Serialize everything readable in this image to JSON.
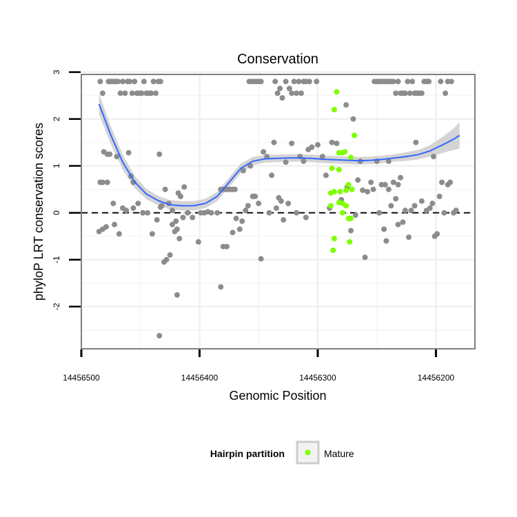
{
  "chart_data": {
    "type": "scatter",
    "title": "Conservation",
    "xlabel": "Genomic Position",
    "ylabel": "phyloP LRT conservation scores",
    "x_reversed": true,
    "xlim": [
      14456500,
      14456167
    ],
    "ylim": [
      -2.9,
      2.95
    ],
    "x_ticks": [
      14456500,
      14456400,
      14456300,
      14456200
    ],
    "x_tick_labels": [
      "14456500",
      "14456400",
      "14456300",
      "14456200"
    ],
    "y_ticks": [
      -2,
      -1,
      0,
      1,
      2,
      3
    ],
    "y_tick_labels": [
      "-2",
      "-1",
      "0",
      "1",
      "2",
      "3"
    ],
    "grid": true,
    "reference_line": {
      "y": 0,
      "style": "dashed"
    },
    "legend": {
      "title": "Hairpin partition",
      "position": "bottom",
      "entries": [
        {
          "label": "Mature",
          "color": "#7fff00"
        }
      ]
    },
    "colors": {
      "other": "#8c8c8c",
      "mature": "#7fff00",
      "smooth": "#3366ff",
      "band": "#cccccc"
    },
    "series": [
      {
        "name": "",
        "color": "#8c8c8c",
        "points": [
          [
            14456484,
            2.8
          ],
          [
            14456482,
            2.55
          ],
          [
            14456477,
            2.8
          ],
          [
            14456475,
            2.8
          ],
          [
            14456473,
            2.8
          ],
          [
            14456471,
            2.8
          ],
          [
            14456469,
            2.8
          ],
          [
            14456467,
            2.55
          ],
          [
            14456465,
            2.8
          ],
          [
            14456463,
            2.55
          ],
          [
            14456461,
            2.8
          ],
          [
            14456459,
            2.8
          ],
          [
            14456457,
            2.55
          ],
          [
            14456455,
            2.8
          ],
          [
            14456453,
            2.55
          ],
          [
            14456451,
            2.55
          ],
          [
            14456449,
            2.55
          ],
          [
            14456447,
            2.8
          ],
          [
            14456445,
            2.55
          ],
          [
            14456443,
            2.55
          ],
          [
            14456441,
            2.55
          ],
          [
            14456439,
            2.8
          ],
          [
            14456437,
            2.55
          ],
          [
            14456435,
            2.8
          ],
          [
            14456433,
            2.8
          ],
          [
            14456485,
            -0.4
          ],
          [
            14456482,
            -0.35
          ],
          [
            14456479,
            -0.3
          ],
          [
            14456472,
            -0.25
          ],
          [
            14456468,
            -0.45
          ],
          [
            14456462,
            0.05
          ],
          [
            14456456,
            0.1
          ],
          [
            14456452,
            0.2
          ],
          [
            14456448,
            0.0
          ],
          [
            14456440,
            -0.45
          ],
          [
            14456436,
            -0.15
          ],
          [
            14456432,
            0.15
          ],
          [
            14456430,
            -1.05
          ],
          [
            14456428,
            -1.0
          ],
          [
            14456425,
            -0.9
          ],
          [
            14456423,
            -0.25
          ],
          [
            14456421,
            -0.4
          ],
          [
            14456419,
            -0.35
          ],
          [
            14456417,
            -0.55
          ],
          [
            14456414,
            -0.1
          ],
          [
            14456410,
            0.0
          ],
          [
            14456406,
            -0.1
          ],
          [
            14456401,
            -0.62
          ],
          [
            14456399,
            0.0
          ],
          [
            14456396,
            0.0
          ],
          [
            14456393,
            0.02
          ],
          [
            14456390,
            0.0
          ],
          [
            14456385,
            0.0
          ],
          [
            14456484,
            0.65
          ],
          [
            14456482,
            0.65
          ],
          [
            14456478,
            0.65
          ],
          [
            14456481,
            1.3
          ],
          [
            14456478,
            1.25
          ],
          [
            14456476,
            1.25
          ],
          [
            14456473,
            0.2
          ],
          [
            14456470,
            1.2
          ],
          [
            14456465,
            0.1
          ],
          [
            14456460,
            1.28
          ],
          [
            14456458,
            0.78
          ],
          [
            14456456,
            0.65
          ],
          [
            14456448,
            0.0
          ],
          [
            14456444,
            0.0
          ],
          [
            14456434,
            1.25
          ],
          [
            14456433,
            0.12
          ],
          [
            14456429,
            0.5
          ],
          [
            14456426,
            0.2
          ],
          [
            14456423,
            0.05
          ],
          [
            14456420,
            -0.18
          ],
          [
            14456418,
            0.42
          ],
          [
            14456416,
            0.35
          ],
          [
            14456413,
            0.55
          ],
          [
            14456434,
            -2.62
          ],
          [
            14456419,
            -1.75
          ],
          [
            14456382,
            -1.58
          ],
          [
            14456382,
            0.5
          ],
          [
            14456380,
            0.5
          ],
          [
            14456378,
            0.5
          ],
          [
            14456376,
            0.5
          ],
          [
            14456374,
            0.5
          ],
          [
            14456372,
            0.5
          ],
          [
            14456370,
            0.5
          ],
          [
            14456380,
            -0.72
          ],
          [
            14456377,
            -0.72
          ],
          [
            14456372,
            -0.42
          ],
          [
            14456369,
            -0.12
          ],
          [
            14456366,
            -0.35
          ],
          [
            14456364,
            -0.18
          ],
          [
            14456363,
            0.9
          ],
          [
            14456361,
            0.05
          ],
          [
            14456359,
            0.15
          ],
          [
            14456357,
            1.0
          ],
          [
            14456355,
            0.35
          ],
          [
            14456353,
            0.35
          ],
          [
            14456350,
            0.2
          ],
          [
            14456348,
            -0.98
          ],
          [
            14456346,
            1.3
          ],
          [
            14456343,
            1.2
          ],
          [
            14456341,
            0.0
          ],
          [
            14456339,
            0.8
          ],
          [
            14456337,
            1.5
          ],
          [
            14456335,
            0.1
          ],
          [
            14456333,
            0.32
          ],
          [
            14456331,
            0.25
          ],
          [
            14456329,
            -0.15
          ],
          [
            14456327,
            1.08
          ],
          [
            14456325,
            0.2
          ],
          [
            14456322,
            1.48
          ],
          [
            14456318,
            0.0
          ],
          [
            14456315,
            1.2
          ],
          [
            14456312,
            1.1
          ],
          [
            14456310,
            -0.1
          ],
          [
            14456308,
            1.35
          ],
          [
            14456305,
            1.4
          ],
          [
            14456300,
            1.45
          ],
          [
            14456296,
            1.2
          ],
          [
            14456293,
            0.8
          ],
          [
            14456290,
            0.1
          ],
          [
            14456288,
            1.5
          ],
          [
            14456284,
            1.48
          ],
          [
            14456280,
            0.28
          ],
          [
            14456275,
            0.55
          ],
          [
            14456272,
            -0.38
          ],
          [
            14456268,
            -0.05
          ],
          [
            14456266,
            0.7
          ],
          [
            14456264,
            1.1
          ],
          [
            14456262,
            0.48
          ],
          [
            14456358,
            2.8
          ],
          [
            14456356,
            2.8
          ],
          [
            14456354,
            2.8
          ],
          [
            14456352,
            2.8
          ],
          [
            14456350,
            2.8
          ],
          [
            14456348,
            2.8
          ],
          [
            14456336,
            2.8
          ],
          [
            14456334,
            2.55
          ],
          [
            14456332,
            2.65
          ],
          [
            14456330,
            2.45
          ],
          [
            14456327,
            2.8
          ],
          [
            14456324,
            2.65
          ],
          [
            14456322,
            2.55
          ],
          [
            14456320,
            2.8
          ],
          [
            14456318,
            2.55
          ],
          [
            14456316,
            2.8
          ],
          [
            14456314,
            2.55
          ],
          [
            14456312,
            2.8
          ],
          [
            14456310,
            2.8
          ],
          [
            14456307,
            2.8
          ],
          [
            14456301,
            2.8
          ],
          [
            14456276,
            2.3
          ],
          [
            14456270,
            2.0
          ],
          [
            14456260,
            -0.95
          ],
          [
            14456258,
            0.45
          ],
          [
            14456255,
            0.65
          ],
          [
            14456253,
            0.5
          ],
          [
            14456250,
            1.1
          ],
          [
            14456248,
            0.0
          ],
          [
            14456246,
            0.6
          ],
          [
            14456244,
            -0.35
          ],
          [
            14456242,
            -0.6
          ],
          [
            14456240,
            0.5
          ],
          [
            14456238,
            0.15
          ],
          [
            14456236,
            0.65
          ],
          [
            14456234,
            0.3
          ],
          [
            14456232,
            -0.25
          ],
          [
            14456230,
            0.75
          ],
          [
            14456228,
            -0.2
          ],
          [
            14456226,
            0.05
          ],
          [
            14456223,
            -0.52
          ],
          [
            14456221,
            0.05
          ],
          [
            14456218,
            0.15
          ],
          [
            14456212,
            0.25
          ],
          [
            14456208,
            0.05
          ],
          [
            14456205,
            0.1
          ],
          [
            14456203,
            0.2
          ],
          [
            14456201,
            -0.5
          ],
          [
            14456199,
            -0.45
          ],
          [
            14456197,
            0.35
          ],
          [
            14456195,
            0.65
          ],
          [
            14456193,
            0.0
          ],
          [
            14456190,
            0.6
          ],
          [
            14456188,
            0.65
          ],
          [
            14456185,
            0.0
          ],
          [
            14456183,
            0.05
          ],
          [
            14456202,
            1.2
          ],
          [
            14456217,
            1.5
          ],
          [
            14456232,
            0.6
          ],
          [
            14456240,
            1.1
          ],
          [
            14456243,
            0.6
          ],
          [
            14456252,
            2.8
          ],
          [
            14456250,
            2.8
          ],
          [
            14456248,
            2.8
          ],
          [
            14456246,
            2.8
          ],
          [
            14456244,
            2.8
          ],
          [
            14456242,
            2.8
          ],
          [
            14456240,
            2.8
          ],
          [
            14456238,
            2.8
          ],
          [
            14456236,
            2.8
          ],
          [
            14456234,
            2.55
          ],
          [
            14456232,
            2.8
          ],
          [
            14456230,
            2.55
          ],
          [
            14456228,
            2.55
          ],
          [
            14456226,
            2.55
          ],
          [
            14456224,
            2.8
          ],
          [
            14456222,
            2.55
          ],
          [
            14456220,
            2.8
          ],
          [
            14456218,
            2.55
          ],
          [
            14456216,
            2.55
          ],
          [
            14456214,
            2.55
          ],
          [
            14456212,
            2.55
          ],
          [
            14456210,
            2.8
          ],
          [
            14456208,
            2.8
          ],
          [
            14456206,
            2.8
          ],
          [
            14456196,
            2.8
          ],
          [
            14456192,
            2.55
          ],
          [
            14456190,
            2.8
          ],
          [
            14456187,
            2.8
          ]
        ]
      },
      {
        "name": "Mature",
        "color": "#7fff00",
        "points": [
          [
            14456284,
            2.58
          ],
          [
            14456286,
            2.2
          ],
          [
            14456282,
            1.28
          ],
          [
            14456279,
            1.28
          ],
          [
            14456277,
            1.3
          ],
          [
            14456272,
            1.18
          ],
          [
            14456269,
            1.65
          ],
          [
            14456288,
            0.95
          ],
          [
            14456282,
            0.92
          ],
          [
            14456289,
            0.42
          ],
          [
            14456286,
            0.45
          ],
          [
            14456281,
            0.45
          ],
          [
            14456276,
            0.48
          ],
          [
            14456274,
            0.6
          ],
          [
            14456271,
            0.5
          ],
          [
            14456289,
            0.15
          ],
          [
            14456282,
            0.22
          ],
          [
            14456279,
            0.2
          ],
          [
            14456276,
            0.15
          ],
          [
            14456279,
            0.0
          ],
          [
            14456274,
            -0.12
          ],
          [
            14456272,
            -0.12
          ],
          [
            14456286,
            -0.55
          ],
          [
            14456273,
            -0.62
          ],
          [
            14456287,
            -0.8
          ]
        ]
      }
    ],
    "smooth": {
      "points": [
        [
          14456485,
          2.32
        ],
        [
          14456475,
          1.65
        ],
        [
          14456465,
          1.08
        ],
        [
          14456455,
          0.66
        ],
        [
          14456445,
          0.4
        ],
        [
          14456435,
          0.26
        ],
        [
          14456425,
          0.17
        ],
        [
          14456415,
          0.15
        ],
        [
          14456405,
          0.15
        ],
        [
          14456395,
          0.2
        ],
        [
          14456385,
          0.35
        ],
        [
          14456375,
          0.65
        ],
        [
          14456365,
          0.95
        ],
        [
          14456355,
          1.1
        ],
        [
          14456345,
          1.15
        ],
        [
          14456335,
          1.16
        ],
        [
          14456325,
          1.17
        ],
        [
          14456315,
          1.17
        ],
        [
          14456305,
          1.16
        ],
        [
          14456295,
          1.14
        ],
        [
          14456285,
          1.13
        ],
        [
          14456275,
          1.12
        ],
        [
          14456265,
          1.11
        ],
        [
          14456255,
          1.12
        ],
        [
          14456245,
          1.14
        ],
        [
          14456235,
          1.17
        ],
        [
          14456225,
          1.2
        ],
        [
          14456215,
          1.24
        ],
        [
          14456205,
          1.32
        ],
        [
          14456195,
          1.44
        ],
        [
          14456185,
          1.57
        ],
        [
          14456180,
          1.65
        ]
      ],
      "band_halfwidth": [
        0.22,
        0.19,
        0.16,
        0.13,
        0.11,
        0.1,
        0.1,
        0.1,
        0.1,
        0.1,
        0.1,
        0.1,
        0.1,
        0.09,
        0.08,
        0.08,
        0.08,
        0.08,
        0.08,
        0.08,
        0.08,
        0.08,
        0.08,
        0.08,
        0.08,
        0.08,
        0.09,
        0.1,
        0.12,
        0.17,
        0.23,
        0.28
      ]
    }
  }
}
